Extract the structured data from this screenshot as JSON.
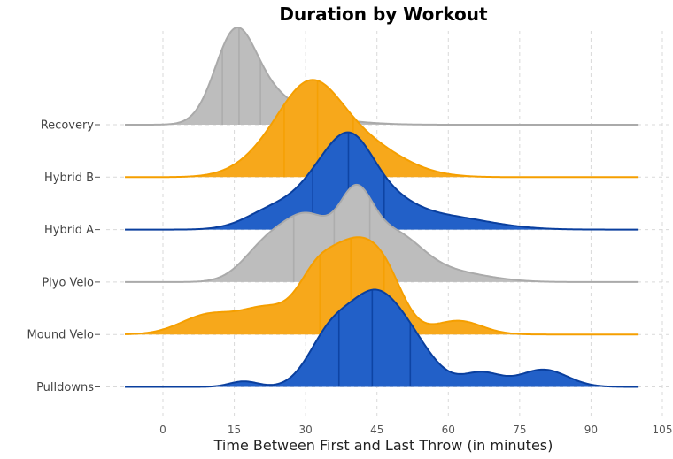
{
  "chart_data": {
    "type": "ridgeline",
    "title": "Duration by Workout",
    "xlabel": "Time Between First and Last Throw (in minutes)",
    "ylabel": "",
    "xlim": [
      -10,
      105
    ],
    "xticks": [
      0,
      15,
      30,
      45,
      60,
      75,
      90,
      105
    ],
    "x_range_drawn": [
      -8,
      100
    ],
    "grid": true,
    "categories": [
      "Recovery",
      "Hybrid B",
      "Hybrid A",
      "Plyo Velo",
      "Mound Velo",
      "Pulldowns"
    ],
    "series": [
      {
        "name": "Recovery",
        "color": "#bdbdbd",
        "edge_color": "#aaaaaa",
        "quartiles": [
          12.5,
          16,
          20.5
        ],
        "peak_height": 1.0,
        "components": [
          [
            1.0,
            15,
            4.2
          ],
          [
            0.35,
            21,
            6
          ],
          [
            0.08,
            30,
            9
          ]
        ]
      },
      {
        "name": "Hybrid B",
        "color": "#f7a81b",
        "edge_color": "#f59f00",
        "quartiles": [
          25.5,
          32.5,
          40
        ],
        "peak_height": 1.0,
        "components": [
          [
            0.55,
            25,
            7
          ],
          [
            1.0,
            31.5,
            6
          ],
          [
            0.7,
            40,
            9
          ]
        ]
      },
      {
        "name": "Hybrid A",
        "color": "#2260c8",
        "edge_color": "#0a3f9e",
        "quartiles": [
          31.5,
          39,
          46.5
        ],
        "peak_height": 1.0,
        "components": [
          [
            0.4,
            24,
            6
          ],
          [
            0.85,
            34,
            5
          ],
          [
            1.0,
            40,
            4.5
          ],
          [
            0.5,
            46,
            6
          ],
          [
            0.25,
            58,
            10
          ]
        ]
      },
      {
        "name": "Plyo Velo",
        "color": "#bdbdbd",
        "edge_color": "#aaaaaa",
        "quartiles": [
          27.5,
          36,
          43.5
        ],
        "peak_height": 1.0,
        "components": [
          [
            0.55,
            22,
            5
          ],
          [
            0.9,
            31,
            5
          ],
          [
            1.0,
            40.5,
            3.5
          ],
          [
            0.7,
            48,
            6
          ],
          [
            0.15,
            60,
            8
          ]
        ]
      },
      {
        "name": "Mound Velo",
        "color": "#f7a81b",
        "edge_color": "#f59f00",
        "quartiles": [
          33,
          39.5,
          46.5
        ],
        "peak_height": 1.0,
        "components": [
          [
            0.25,
            10,
            6
          ],
          [
            0.3,
            22,
            5
          ],
          [
            0.6,
            32,
            4
          ],
          [
            1.0,
            40,
            5
          ],
          [
            0.55,
            47,
            4
          ],
          [
            0.17,
            62,
            5
          ]
        ]
      },
      {
        "name": "Pulldowns",
        "color": "#2260c8",
        "edge_color": "#0a3f9e",
        "quartiles": [
          37,
          44,
          52
        ],
        "peak_height": 1.0,
        "components": [
          [
            0.08,
            17,
            3
          ],
          [
            0.7,
            35,
            4.5
          ],
          [
            1.0,
            43.5,
            5
          ],
          [
            0.7,
            51,
            5.5
          ],
          [
            0.2,
            67,
            4
          ],
          [
            0.25,
            80,
            5
          ]
        ]
      }
    ]
  }
}
